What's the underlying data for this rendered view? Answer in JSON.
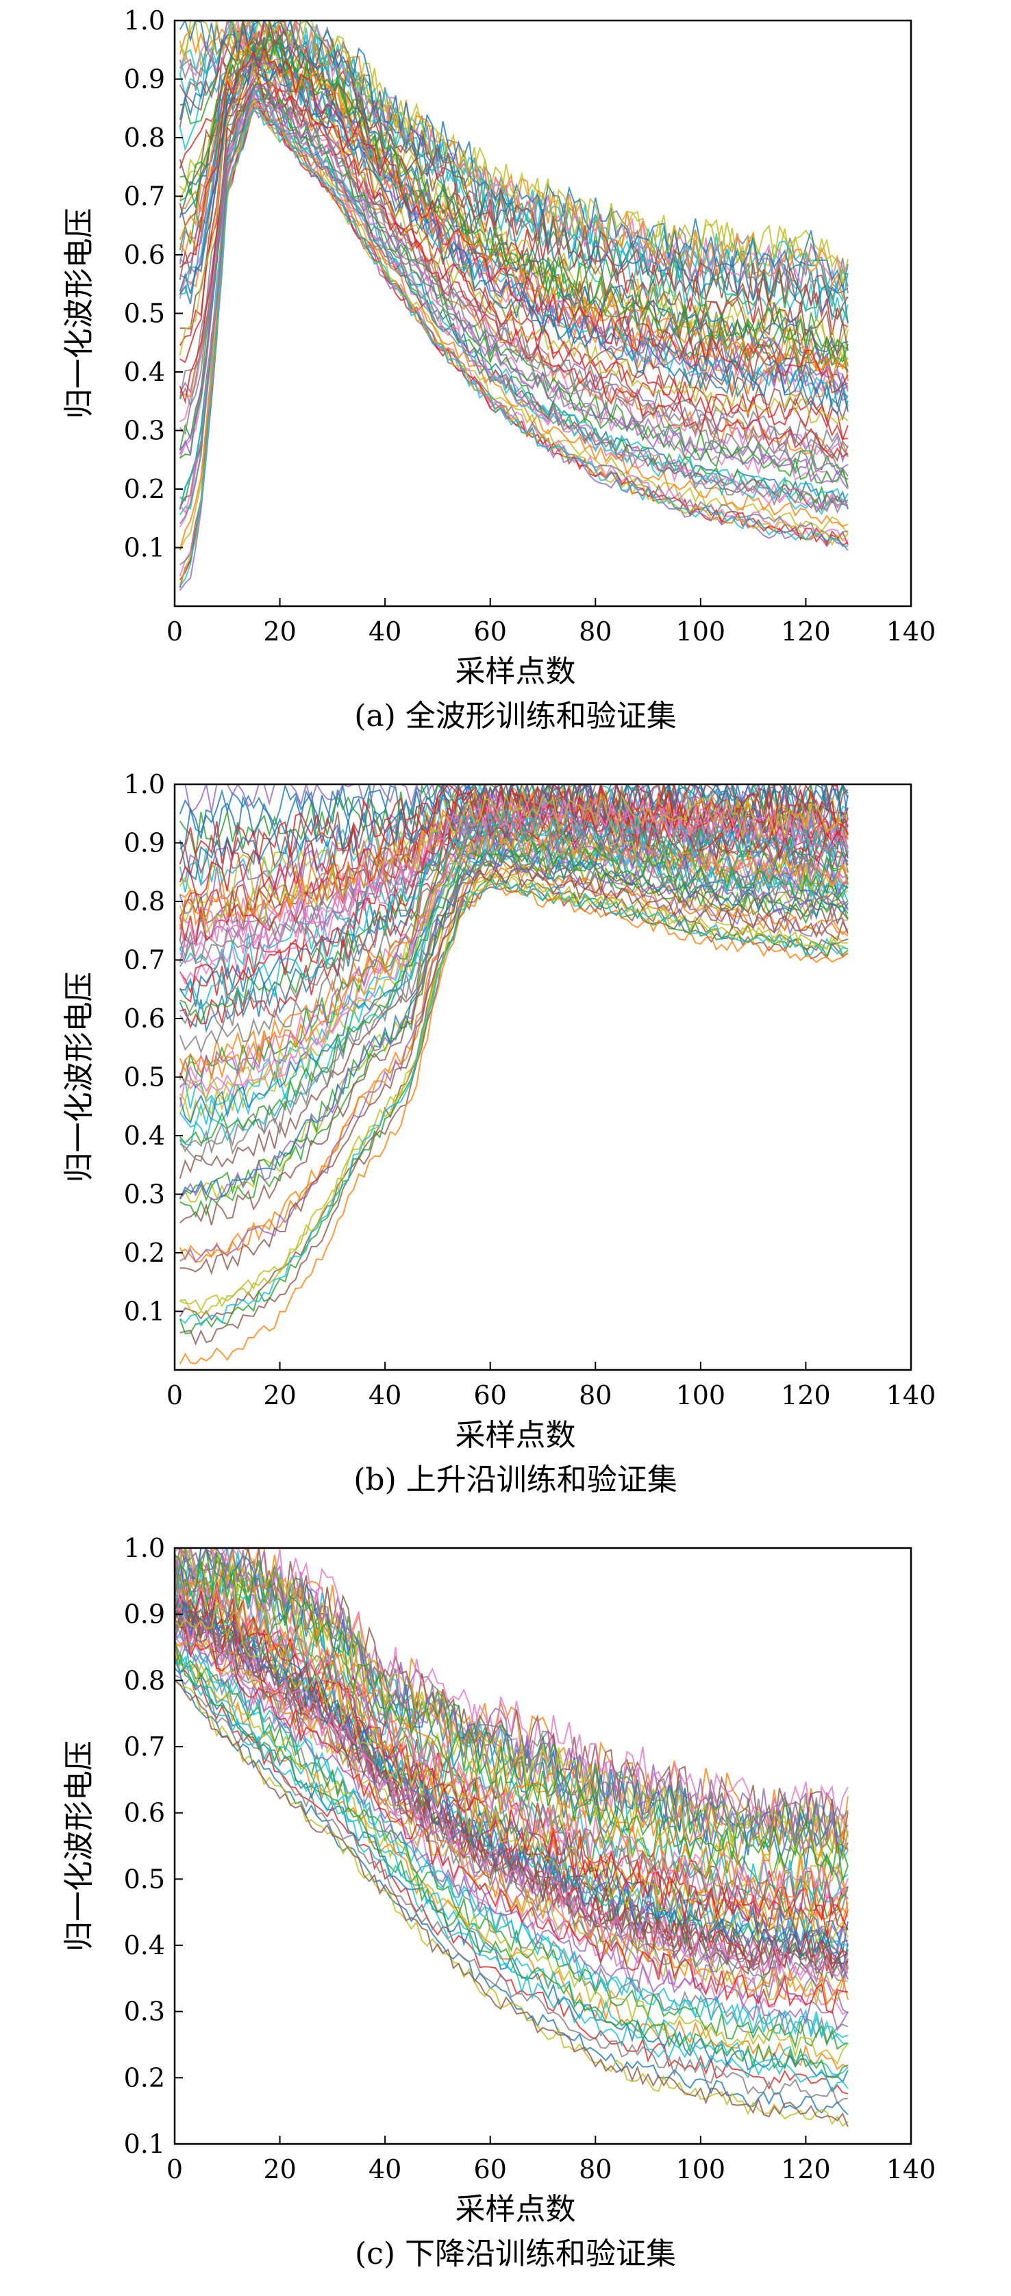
{
  "chart_data": [
    {
      "type": "line",
      "caption": "(a) 全波形训练和验证集",
      "xlabel": "采样点数",
      "ylabel": "归一化波形电压",
      "xlim": [
        0,
        140
      ],
      "ylim": [
        0,
        1.0
      ],
      "xticks": [
        0,
        20,
        40,
        60,
        80,
        100,
        120,
        140
      ],
      "yticks": [
        0.1,
        0.2,
        0.3,
        0.4,
        0.5,
        0.6,
        0.7,
        0.8,
        0.9,
        1.0
      ],
      "x_range": [
        1,
        128
      ],
      "grid": false,
      "envelope": {
        "x": [
          1,
          3,
          5,
          8,
          10,
          15,
          20,
          30,
          40,
          50,
          60,
          70,
          80,
          90,
          100,
          110,
          120,
          128
        ],
        "upper": [
          0.98,
          0.99,
          0.99,
          0.99,
          1.0,
          1.0,
          1.0,
          0.96,
          0.87,
          0.8,
          0.74,
          0.7,
          0.67,
          0.65,
          0.63,
          0.62,
          0.62,
          0.58
        ],
        "lower": [
          0.02,
          0.05,
          0.15,
          0.45,
          0.7,
          0.85,
          0.8,
          0.7,
          0.56,
          0.44,
          0.34,
          0.27,
          0.22,
          0.18,
          0.15,
          0.13,
          0.11,
          0.1
        ]
      }
    },
    {
      "type": "line",
      "caption": "(b) 上升沿训练和验证集",
      "xlabel": "采样点数",
      "ylabel": "归一化波形电压",
      "xlim": [
        0,
        140
      ],
      "ylim": [
        0,
        1.0
      ],
      "xticks": [
        0,
        20,
        40,
        60,
        80,
        100,
        120,
        140
      ],
      "yticks": [
        0.1,
        0.2,
        0.3,
        0.4,
        0.5,
        0.6,
        0.7,
        0.8,
        0.9,
        1.0
      ],
      "x_range": [
        1,
        128
      ],
      "grid": false,
      "envelope": {
        "x": [
          1,
          5,
          10,
          20,
          30,
          35,
          40,
          45,
          50,
          55,
          60,
          70,
          80,
          90,
          100,
          110,
          120,
          128
        ],
        "upper": [
          0.98,
          0.99,
          1.0,
          1.0,
          1.0,
          1.0,
          1.0,
          1.0,
          1.0,
          1.0,
          1.0,
          1.0,
          1.0,
          1.0,
          1.0,
          1.0,
          1.0,
          0.99
        ],
        "lower": [
          0.01,
          0.01,
          0.02,
          0.08,
          0.22,
          0.32,
          0.38,
          0.45,
          0.65,
          0.78,
          0.82,
          0.8,
          0.78,
          0.76,
          0.73,
          0.72,
          0.7,
          0.7
        ]
      }
    },
    {
      "type": "line",
      "caption": "(c) 下降沿训练和验证集",
      "xlabel": "采样点数",
      "ylabel": "归一化波形电压",
      "xlim": [
        0,
        140
      ],
      "ylim": [
        0.1,
        1.0
      ],
      "xticks": [
        0,
        20,
        40,
        60,
        80,
        100,
        120,
        140
      ],
      "yticks": [
        0.1,
        0.2,
        0.3,
        0.4,
        0.5,
        0.6,
        0.7,
        0.8,
        0.9,
        1.0
      ],
      "x_range": [
        0,
        128
      ],
      "grid": false,
      "envelope": {
        "x": [
          0,
          5,
          10,
          20,
          30,
          40,
          50,
          60,
          70,
          80,
          90,
          100,
          110,
          120,
          128
        ],
        "upper": [
          0.98,
          1.0,
          1.0,
          0.96,
          0.92,
          0.82,
          0.78,
          0.74,
          0.72,
          0.68,
          0.66,
          0.64,
          0.62,
          0.63,
          0.6
        ],
        "lower": [
          0.8,
          0.75,
          0.7,
          0.62,
          0.55,
          0.47,
          0.38,
          0.31,
          0.26,
          0.21,
          0.18,
          0.16,
          0.14,
          0.13,
          0.12
        ]
      }
    }
  ]
}
